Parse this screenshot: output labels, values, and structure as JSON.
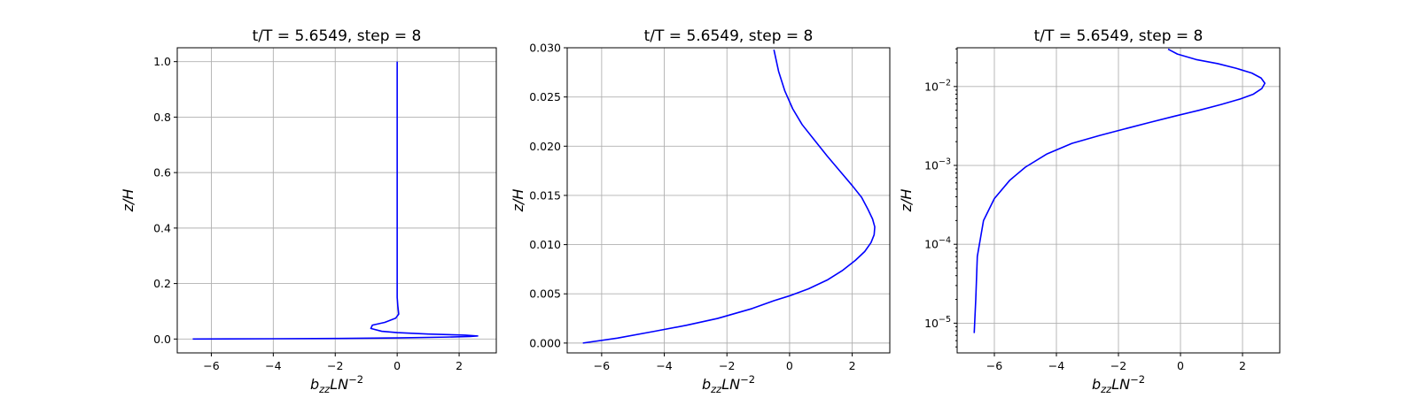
{
  "chart_data": [
    {
      "type": "line",
      "title": "t/T = 5.6549, step = 8",
      "xlabel_base": "b",
      "xlabel_sub": "zz",
      "xlabel_mid": "LN",
      "xlabel_sup": "−2",
      "ylabel": "z/H",
      "xlim": [
        -7.1,
        3.2
      ],
      "ylim": [
        -0.05,
        1.05
      ],
      "yscale": "linear",
      "grid": true,
      "xticks": [
        -6,
        -4,
        -2,
        0,
        2
      ],
      "xtick_labels": [
        "−6",
        "−4",
        "−2",
        "0",
        "2"
      ],
      "yticks": [
        0.0,
        0.2,
        0.4,
        0.6,
        0.8,
        1.0
      ],
      "ytick_labels": [
        "0.0",
        "0.2",
        "0.4",
        "0.6",
        "0.8",
        "1.0"
      ],
      "color": "#0000ff",
      "series": [
        {
          "x": [
            -6.6,
            -4.0,
            -2.0,
            0.0,
            1.6,
            2.35,
            2.6,
            2.2,
            1.0,
            0.0,
            -0.5,
            -0.85,
            -0.8,
            -0.4,
            -0.05,
            0.05,
            0.02,
            0.0,
            0.0,
            0.0,
            0.0
          ],
          "y": [
            0.0,
            0.001,
            0.002,
            0.004,
            0.007,
            0.009,
            0.011,
            0.014,
            0.018,
            0.023,
            0.028,
            0.038,
            0.05,
            0.06,
            0.075,
            0.09,
            0.12,
            0.15,
            0.3,
            0.6,
            1.0
          ]
        }
      ]
    },
    {
      "type": "line",
      "title": "t/T = 5.6549, step = 8",
      "xlabel_base": "b",
      "xlabel_sub": "zz",
      "xlabel_mid": "LN",
      "xlabel_sup": "−2",
      "ylabel": "z/H",
      "xlim": [
        -7.1,
        3.2
      ],
      "ylim": [
        -0.001,
        0.03
      ],
      "yscale": "linear",
      "grid": true,
      "xticks": [
        -6,
        -4,
        -2,
        0,
        2
      ],
      "xtick_labels": [
        "−6",
        "−4",
        "−2",
        "0",
        "2"
      ],
      "yticks": [
        0.0,
        0.005,
        0.01,
        0.015,
        0.02,
        0.025,
        0.03
      ],
      "ytick_labels": [
        "0.000",
        "0.005",
        "0.010",
        "0.015",
        "0.020",
        "0.025",
        "0.030"
      ],
      "color": "#0000ff",
      "series": [
        {
          "x": [
            -6.6,
            -5.5,
            -4.3,
            -3.3,
            -2.3,
            -1.2,
            -0.5,
            0.0,
            0.6,
            1.2,
            1.7,
            2.1,
            2.4,
            2.6,
            2.7,
            2.72,
            2.65,
            2.5,
            2.3,
            2.0,
            1.6,
            1.2,
            0.8,
            0.4,
            0.1,
            -0.15,
            -0.35,
            -0.5
          ],
          "y": [
            0.0,
            0.0005,
            0.0012,
            0.0018,
            0.0025,
            0.0035,
            0.0043,
            0.0048,
            0.0055,
            0.0064,
            0.0074,
            0.0084,
            0.0093,
            0.0102,
            0.011,
            0.0118,
            0.0126,
            0.0136,
            0.0148,
            0.016,
            0.0175,
            0.019,
            0.0206,
            0.0222,
            0.0238,
            0.0256,
            0.0276,
            0.0298
          ]
        }
      ]
    },
    {
      "type": "line",
      "title": "t/T = 5.6549, step = 8",
      "xlabel_base": "b",
      "xlabel_sub": "zz",
      "xlabel_mid": "LN",
      "xlabel_sup": "−2",
      "ylabel": "z/H",
      "xlim": [
        -7.2,
        3.2
      ],
      "ylim": [
        4.2e-06,
        0.031
      ],
      "yscale": "log",
      "grid": true,
      "xticks": [
        -6,
        -4,
        -2,
        0,
        2
      ],
      "xtick_labels": [
        "−6",
        "−4",
        "−2",
        "0",
        "2"
      ],
      "yticks": [
        1e-05,
        0.0001,
        0.001,
        0.01
      ],
      "ytick_base": "10",
      "ytick_exps": [
        "−5",
        "−4",
        "−3",
        "−2"
      ],
      "color": "#0000ff",
      "series": [
        {
          "x": [
            -6.65,
            -6.6,
            -6.55,
            -6.35,
            -6.0,
            -5.5,
            -5.0,
            -4.3,
            -3.5,
            -2.6,
            -1.8,
            -1.0,
            -0.2,
            0.6,
            1.3,
            1.9,
            2.35,
            2.62,
            2.72,
            2.6,
            2.3,
            1.8,
            1.2,
            0.5,
            -0.1,
            -0.4
          ],
          "y": [
            7.5e-06,
            2e-05,
            7e-05,
            0.0002,
            0.00038,
            0.00065,
            0.00095,
            0.0014,
            0.0019,
            0.0024,
            0.0029,
            0.0035,
            0.0042,
            0.005,
            0.0059,
            0.0069,
            0.008,
            0.0094,
            0.011,
            0.0128,
            0.0148,
            0.017,
            0.0195,
            0.022,
            0.0258,
            0.0298
          ]
        }
      ]
    }
  ]
}
